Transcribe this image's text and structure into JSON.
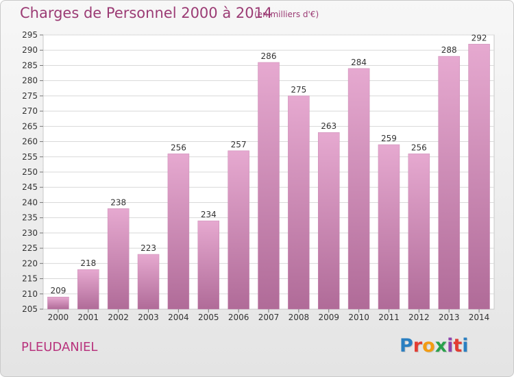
{
  "header": {
    "title": "Charges de Personnel 2000 à 2014",
    "subtitle": "(en milliers d'€)"
  },
  "footer": {
    "commune": "PLEUDANIEL",
    "logo_letters": [
      "P",
      "r",
      "o",
      "x",
      "i",
      "t",
      "i"
    ],
    "logo_colors": [
      "#2a7fc1",
      "#e23d33",
      "#f39c12",
      "#2aa14b",
      "#8e44ad",
      "#e23d33",
      "#2a7fc1"
    ]
  },
  "chart_data": {
    "type": "bar",
    "title": "Charges de Personnel 2000 à 2014",
    "subtitle": "(en milliers d'€)",
    "categories": [
      "2000",
      "2001",
      "2002",
      "2003",
      "2004",
      "2005",
      "2006",
      "2007",
      "2008",
      "2009",
      "2010",
      "2011",
      "2012",
      "2013",
      "2014"
    ],
    "values": [
      209,
      218,
      238,
      223,
      256,
      234,
      257,
      286,
      275,
      263,
      284,
      259,
      256,
      288,
      292
    ],
    "ylim": [
      205,
      295
    ],
    "yticks": [
      205,
      210,
      215,
      220,
      225,
      230,
      235,
      240,
      245,
      250,
      255,
      260,
      265,
      270,
      275,
      280,
      285,
      290,
      295
    ],
    "grid": true,
    "bar_color_top": "#e6a9d0",
    "bar_color_bottom": "#b06b98",
    "grid_color": "#d8d8d8"
  }
}
